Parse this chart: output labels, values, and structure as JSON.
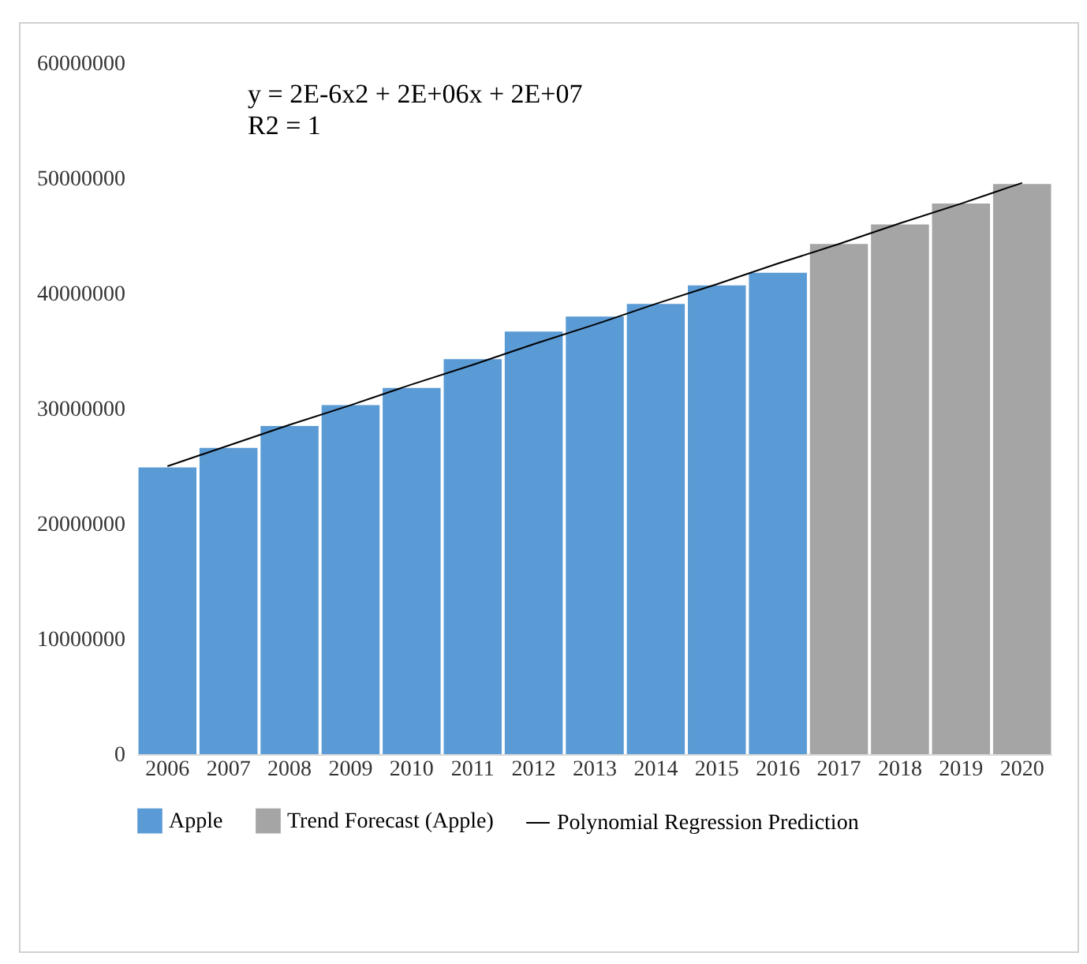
{
  "chart_data": {
    "type": "bar",
    "categories": [
      "2006",
      "2007",
      "2008",
      "2009",
      "2010",
      "2011",
      "2012",
      "2013",
      "2014",
      "2015",
      "2016",
      "2017",
      "2018",
      "2019",
      "2020"
    ],
    "series": [
      {
        "name": "Apple",
        "color": "#5b9bd5",
        "values": [
          24900000,
          26600000,
          28500000,
          30300000,
          31800000,
          34300000,
          36700000,
          38000000,
          39100000,
          40700000,
          41800000,
          null,
          null,
          null,
          null
        ]
      },
      {
        "name": "Trend Forecast (Apple)",
        "color": "#a5a5a5",
        "values": [
          null,
          null,
          null,
          null,
          null,
          null,
          null,
          null,
          null,
          null,
          null,
          44300000,
          46000000,
          47800000,
          49500000
        ]
      },
      {
        "name": "Polynomial Regression Prediction",
        "color": "#000000",
        "type": "line",
        "values": [
          25000000,
          26800000,
          28600000,
          30300000,
          32100000,
          33800000,
          35600000,
          37300000,
          39100000,
          40800000,
          42600000,
          44300000,
          46100000,
          47800000,
          49600000
        ]
      }
    ],
    "ylim": [
      0,
      60000000
    ],
    "yticks": [
      0,
      10000000,
      20000000,
      30000000,
      40000000,
      50000000,
      60000000
    ],
    "grid": false,
    "legend": "bottom",
    "annotations": [
      "y = 2E-6x2 + 2E+06x + 2E+07",
      "R2 = 1"
    ]
  }
}
